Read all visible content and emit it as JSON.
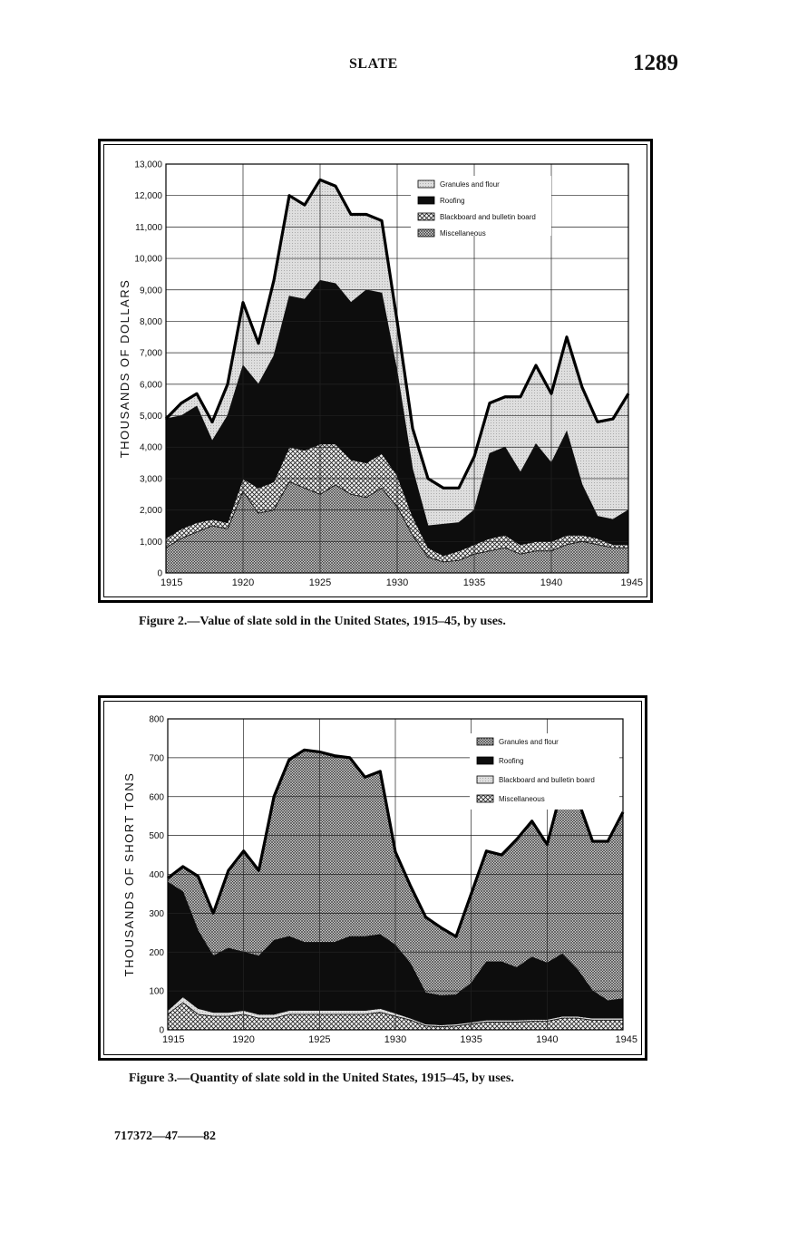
{
  "header": {
    "title": "SLATE",
    "page_number": "1289"
  },
  "figure2": {
    "caption": "Figure 2.—Value of slate sold in the United States, 1915–45, by uses."
  },
  "figure3": {
    "caption": "Figure 3.—Quantity of slate sold in the United States, 1915–45, by uses."
  },
  "footer": {
    "code": "717372—47——82"
  },
  "colors": {
    "granules": "#d9d9d9",
    "roofing": "#111111",
    "blackboard": "#e6e6e6",
    "misc": "#bfbfbf",
    "line": "#000000"
  },
  "chart_data": [
    {
      "type": "area",
      "stacked": true,
      "title": "",
      "xlabel": "",
      "ylabel": "THOUSANDS OF DOLLARS",
      "xlim": [
        1915,
        1945
      ],
      "ylim": [
        0,
        13000
      ],
      "x_ticks": [
        "1915",
        "1920",
        "1925",
        "1930",
        "1935",
        "1940",
        "1945"
      ],
      "y_ticks": [
        "0",
        "1,000",
        "2,000",
        "3,000",
        "4,000",
        "5,000",
        "6,000",
        "7,000",
        "8,000",
        "9,000",
        "10,000",
        "11,000",
        "12,000",
        "13,000"
      ],
      "grid": true,
      "legend_position": "top-right",
      "x": [
        1915,
        1916,
        1917,
        1918,
        1919,
        1920,
        1921,
        1922,
        1923,
        1924,
        1925,
        1926,
        1927,
        1928,
        1929,
        1930,
        1931,
        1932,
        1933,
        1934,
        1935,
        1936,
        1937,
        1938,
        1939,
        1940,
        1941,
        1942,
        1943,
        1944,
        1945
      ],
      "series": [
        {
          "name": "Miscellaneous",
          "pattern": "crosshatch-fine",
          "values": [
            800,
            1100,
            1300,
            1500,
            1400,
            2600,
            1900,
            2000,
            2900,
            2700,
            2500,
            2800,
            2500,
            2400,
            2700,
            2100,
            1200,
            500,
            350,
            400,
            600,
            700,
            800,
            600,
            700,
            700,
            900,
            1000,
            900,
            800,
            800
          ]
        },
        {
          "name": "Blackboard and bulletin board",
          "pattern": "crosshatch",
          "values": [
            300,
            300,
            300,
            200,
            200,
            400,
            800,
            900,
            1100,
            1200,
            1600,
            1300,
            1100,
            1100,
            1100,
            1000,
            600,
            300,
            200,
            300,
            300,
            400,
            400,
            300,
            300,
            300,
            300,
            200,
            200,
            100,
            100
          ]
        },
        {
          "name": "Roofing",
          "pattern": "solid",
          "values": [
            3800,
            3600,
            3700,
            2500,
            3400,
            3600,
            3300,
            4000,
            4800,
            4800,
            5200,
            5100,
            5000,
            5500,
            5100,
            3300,
            1500,
            700,
            1000,
            900,
            1100,
            2700,
            2800,
            2300,
            3100,
            2500,
            3300,
            1600,
            700,
            800,
            1100
          ]
        },
        {
          "name": "Granules and flour",
          "pattern": "light",
          "values": [
            0,
            400,
            400,
            600,
            1000,
            2000,
            1300,
            2400,
            3200,
            3000,
            3200,
            3100,
            2800,
            2400,
            2300,
            1600,
            1300,
            1500,
            1150,
            1100,
            1700,
            1600,
            1600,
            2400,
            2500,
            2200,
            3000,
            3100,
            3000,
            3200,
            3700
          ]
        }
      ]
    },
    {
      "type": "area",
      "stacked": true,
      "title": "",
      "xlabel": "",
      "ylabel": "THOUSANDS OF SHORT TONS",
      "xlim": [
        1915,
        1945
      ],
      "ylim": [
        0,
        800
      ],
      "x_ticks": [
        "1915",
        "1920",
        "1925",
        "1930",
        "1935",
        "1940",
        "1945"
      ],
      "y_ticks": [
        "0",
        "100",
        "200",
        "300",
        "400",
        "500",
        "600",
        "700",
        "800"
      ],
      "grid": true,
      "legend_position": "top-right",
      "x": [
        1915,
        1916,
        1917,
        1918,
        1919,
        1920,
        1921,
        1922,
        1923,
        1924,
        1925,
        1926,
        1927,
        1928,
        1929,
        1930,
        1931,
        1932,
        1933,
        1934,
        1935,
        1936,
        1937,
        1938,
        1939,
        1940,
        1941,
        1942,
        1943,
        1944,
        1945
      ],
      "series": [
        {
          "name": "Miscellaneous",
          "pattern": "crosshatch",
          "values": [
            40,
            70,
            40,
            35,
            35,
            40,
            30,
            30,
            40,
            40,
            40,
            40,
            40,
            40,
            45,
            35,
            25,
            10,
            8,
            10,
            15,
            20,
            20,
            20,
            22,
            22,
            30,
            30,
            25,
            25,
            25
          ]
        },
        {
          "name": "Blackboard and bulletin board",
          "pattern": "light",
          "values": [
            10,
            15,
            15,
            10,
            10,
            10,
            10,
            10,
            10,
            10,
            10,
            10,
            10,
            10,
            10,
            8,
            5,
            5,
            5,
            5,
            5,
            5,
            5,
            5,
            5,
            5,
            5,
            5,
            5,
            5,
            5
          ]
        },
        {
          "name": "Roofing",
          "pattern": "solid",
          "values": [
            330,
            270,
            200,
            145,
            165,
            150,
            150,
            190,
            190,
            175,
            175,
            175,
            190,
            190,
            190,
            175,
            140,
            80,
            75,
            75,
            100,
            150,
            150,
            135,
            160,
            145,
            160,
            120,
            70,
            45,
            50
          ]
        },
        {
          "name": "Granules and flour",
          "pattern": "crosshatch-fine",
          "values": [
            10,
            65,
            140,
            110,
            200,
            260,
            220,
            370,
            455,
            495,
            490,
            480,
            460,
            410,
            420,
            240,
            200,
            195,
            175,
            150,
            230,
            285,
            275,
            330,
            350,
            305,
            430,
            440,
            385,
            410,
            480
          ]
        }
      ]
    }
  ]
}
